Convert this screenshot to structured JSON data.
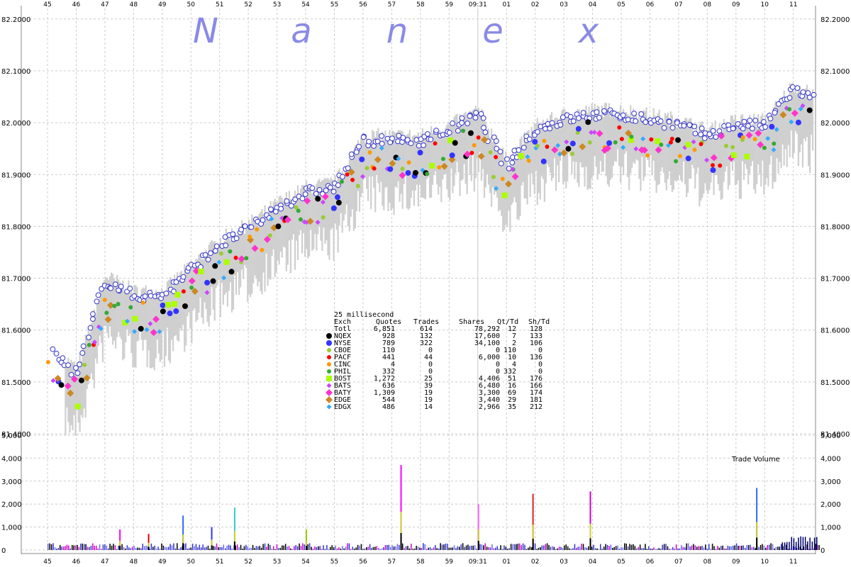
{
  "chart_data": {
    "type": "scatter",
    "watermark": [
      "N",
      "a",
      "n",
      "e",
      "x"
    ],
    "x_tick_labels": [
      "45",
      "46",
      "47",
      "48",
      "49",
      "50",
      "51",
      "52",
      "53",
      "54",
      "55",
      "56",
      "57",
      "58",
      "59",
      "09:31",
      "01",
      "02",
      "03",
      "04",
      "05",
      "06",
      "07",
      "08",
      "09",
      "10",
      "11"
    ],
    "price_axis": {
      "ylim": [
        81.38,
        82.22
      ],
      "ticks": [
        "81.4000",
        "81.5000",
        "81.6000",
        "81.7000",
        "81.8000",
        "81.9000",
        "82.0000",
        "82.1000",
        "82.2000"
      ]
    },
    "volume_axis": {
      "label": "Trade Volume",
      "ylim": [
        0,
        5000
      ],
      "ticks": [
        "0",
        "1,000",
        "2,000",
        "3,000",
        "4,000",
        "5,000"
      ]
    },
    "grid": true,
    "price_trend": [
      [
        0,
        81.55
      ],
      [
        1,
        81.5
      ],
      [
        2,
        81.68
      ],
      [
        3,
        81.65
      ],
      [
        4,
        81.65
      ],
      [
        5,
        81.7
      ],
      [
        6,
        81.75
      ],
      [
        7,
        81.78
      ],
      [
        8,
        81.82
      ],
      [
        9,
        81.85
      ],
      [
        10,
        81.86
      ],
      [
        11,
        81.95
      ],
      [
        12,
        81.95
      ],
      [
        13,
        81.95
      ],
      [
        14,
        81.97
      ],
      [
        15,
        82.0
      ],
      [
        16,
        81.9
      ],
      [
        17,
        81.97
      ],
      [
        18,
        81.99
      ],
      [
        19,
        82.0
      ],
      [
        20,
        82.0
      ],
      [
        21,
        81.99
      ],
      [
        22,
        81.98
      ],
      [
        23,
        81.96
      ],
      [
        24,
        81.98
      ],
      [
        25,
        81.98
      ],
      [
        26,
        82.05
      ],
      [
        26.6,
        82.03
      ]
    ],
    "volume_spikes": [
      {
        "x": 12.3,
        "value": 3700,
        "color": "#ff00ff"
      },
      {
        "x": 18.9,
        "value": 2550,
        "color": "#cc00cc"
      },
      {
        "x": 24.7,
        "value": 2700,
        "color": "#3366ff"
      },
      {
        "x": 16.9,
        "value": 2450,
        "color": "#dd2222"
      },
      {
        "x": 4.7,
        "value": 1500,
        "color": "#3366ff"
      },
      {
        "x": 6.5,
        "value": 1850,
        "color": "#33cccc"
      },
      {
        "x": 15.0,
        "value": 2000,
        "color": "#ff66ff"
      },
      {
        "x": 5.7,
        "value": 1000,
        "color": "#3333ff"
      },
      {
        "x": 2.5,
        "value": 900,
        "color": "#ff00ff"
      },
      {
        "x": 9.0,
        "value": 900,
        "color": "#99cc00"
      },
      {
        "x": 3.5,
        "value": 700,
        "color": "#dd0000"
      }
    ],
    "legend": {
      "title": "25 millisecond",
      "columns": [
        "Exch",
        "Quotes",
        "Trades",
        "Shares",
        "Qt/Td",
        "Sh/Td"
      ],
      "rows": [
        {
          "exch": "Totl",
          "quotes": "6,851",
          "trades": "614",
          "shares": "78,292",
          "qt_td": "12",
          "sh_td": "128",
          "color": "",
          "marker": "none"
        },
        {
          "exch": "NQEX",
          "quotes": "928",
          "trades": "132",
          "shares": "17,600",
          "qt_td": "7",
          "sh_td": "133",
          "color": "#000000",
          "marker": "circle"
        },
        {
          "exch": "NYSE",
          "quotes": "789",
          "trades": "322",
          "shares": "34,100",
          "qt_td": "2",
          "sh_td": "106",
          "color": "#3333ff",
          "marker": "circle"
        },
        {
          "exch": "CBOE",
          "quotes": "110",
          "trades": "0",
          "shares": "0",
          "qt_td": "110",
          "sh_td": "0",
          "color": "#99cc33",
          "marker": "circle-small"
        },
        {
          "exch": "PACF",
          "quotes": "441",
          "trades": "44",
          "shares": "6,000",
          "qt_td": "10",
          "sh_td": "136",
          "color": "#ff0000",
          "marker": "circle-small"
        },
        {
          "exch": "CINC",
          "quotes": "4",
          "trades": "0",
          "shares": "0",
          "qt_td": "4",
          "sh_td": "0",
          "color": "#ff9900",
          "marker": "circle-small"
        },
        {
          "exch": "PHIL",
          "quotes": "332",
          "trades": "0",
          "shares": "0",
          "qt_td": "332",
          "sh_td": "0",
          "color": "#33aa33",
          "marker": "circle-small"
        },
        {
          "exch": "BOST",
          "quotes": "1,272",
          "trades": "25",
          "shares": "4,406",
          "qt_td": "51",
          "sh_td": "176",
          "color": "#aaff00",
          "marker": "square"
        },
        {
          "exch": "BATS",
          "quotes": "636",
          "trades": "39",
          "shares": "6,480",
          "qt_td": "16",
          "sh_td": "166",
          "color": "#cc44ff",
          "marker": "diamond-small"
        },
        {
          "exch": "BATY",
          "quotes": "1,309",
          "trades": "19",
          "shares": "3,300",
          "qt_td": "69",
          "sh_td": "174",
          "color": "#ff33cc",
          "marker": "diamond"
        },
        {
          "exch": "EDGE",
          "quotes": "544",
          "trades": "19",
          "shares": "3,440",
          "qt_td": "29",
          "sh_td": "181",
          "color": "#cc8822",
          "marker": "diamond"
        },
        {
          "exch": "EDGX",
          "quotes": "486",
          "trades": "14",
          "shares": "2,966",
          "qt_td": "35",
          "sh_td": "212",
          "color": "#33aaff",
          "marker": "diamond-small"
        }
      ]
    }
  }
}
